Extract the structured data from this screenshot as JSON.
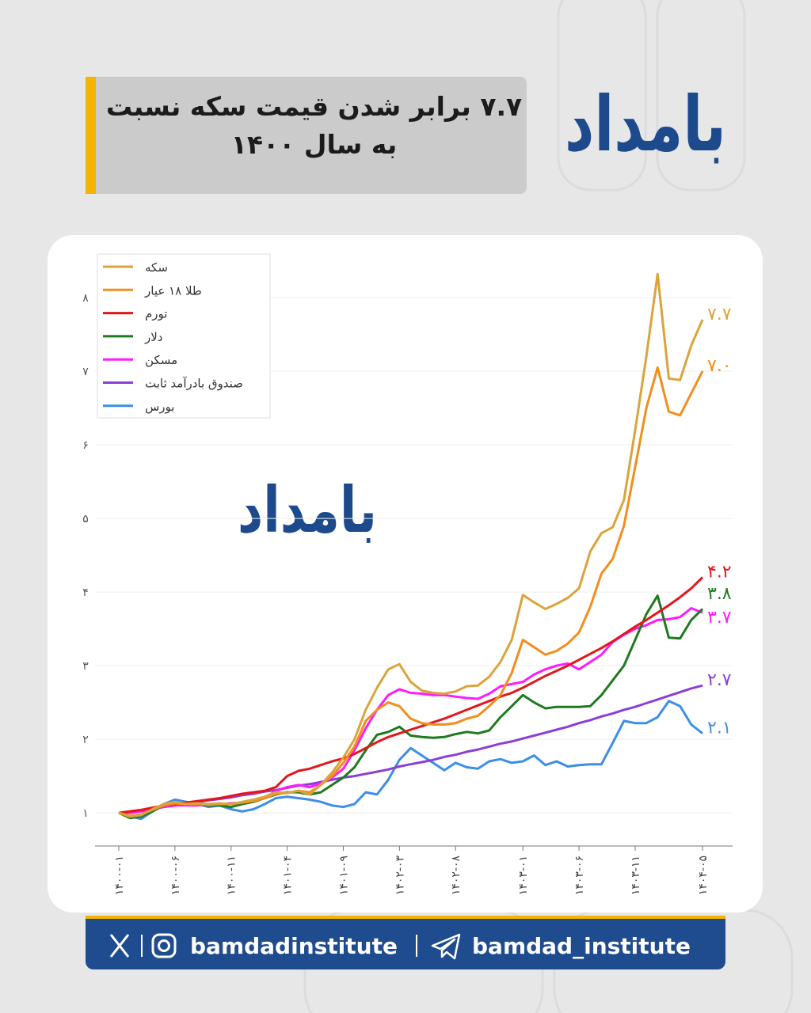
{
  "header": {
    "title_lines": [
      "۷.۷ برابر شدن قیمت سکه نسبت",
      "به سال ۱۴۰۰"
    ],
    "logo": "بامداد"
  },
  "footer": {
    "handle_instagram": "bamdadinstitute",
    "handle_telegram": "bamdad_institute"
  },
  "chart_data": {
    "type": "line",
    "legend": "upper left",
    "grid": true,
    "categories": [
      "۱۴۰۰-۰۱",
      null,
      null,
      null,
      null,
      "۱۴۰۰-۰۶",
      null,
      null,
      null,
      null,
      "۱۴۰۰-۱۱",
      null,
      null,
      null,
      null,
      "۱۴۰۱-۰۴",
      null,
      null,
      null,
      null,
      "۱۴۰۱-۰۹",
      null,
      null,
      null,
      null,
      "۱۴۰۲-۰۳",
      null,
      null,
      null,
      null,
      "۱۴۰۲-۰۸",
      null,
      null,
      null,
      null,
      null,
      "۱۴۰۳-۰۱",
      null,
      null,
      null,
      null,
      "۱۴۰۳-۰۶",
      null,
      null,
      null,
      null,
      "۱۴۰۳-۱۱",
      null,
      null,
      null,
      null,
      null,
      "۱۴۰۴-۰۵"
    ],
    "ylim": [
      0.55,
      8.5
    ],
    "yticks": [
      {
        "value": 1,
        "label": "۱"
      },
      {
        "value": 2,
        "label": "۲"
      },
      {
        "value": 3,
        "label": "۳"
      },
      {
        "value": 4,
        "label": "۴"
      },
      {
        "value": 5,
        "label": "۵"
      },
      {
        "value": 6,
        "label": "۶"
      },
      {
        "value": 7,
        "label": "۷"
      },
      {
        "value": 8,
        "label": "۸"
      }
    ],
    "series": [
      {
        "name": "سکه",
        "color": "#dba43a",
        "values": [
          1.0,
          0.95,
          0.97,
          1.05,
          1.12,
          1.15,
          1.12,
          1.13,
          1.12,
          1.13,
          1.12,
          1.15,
          1.18,
          1.22,
          1.28,
          1.27,
          1.3,
          1.25,
          1.38,
          1.55,
          1.75,
          2.0,
          2.4,
          2.7,
          2.95,
          3.02,
          2.78,
          2.66,
          2.63,
          2.62,
          2.65,
          2.72,
          2.73,
          2.85,
          3.05,
          3.35,
          3.96,
          3.86,
          3.77,
          3.84,
          3.92,
          4.05,
          4.55,
          4.8,
          4.88,
          5.25,
          6.2,
          7.2,
          8.32,
          6.9,
          6.88,
          7.35,
          7.7
        ],
        "value_labels": [
          null,
          null,
          null,
          null,
          null,
          null,
          null,
          null,
          null,
          null,
          null,
          null,
          null,
          null,
          null,
          null,
          null,
          null,
          null,
          null,
          null,
          null,
          null,
          null,
          null,
          null,
          null,
          null,
          null,
          null,
          null,
          null,
          null,
          null,
          null,
          null,
          null,
          null,
          null,
          null,
          null,
          null,
          null,
          null,
          null,
          null,
          null,
          null,
          null,
          null,
          null,
          null,
          "۷.۷"
        ]
      },
      {
        "name": "طلا ۱۸ عیار",
        "color": "#f28e1c",
        "values": [
          1.0,
          0.96,
          0.98,
          1.04,
          1.1,
          1.13,
          1.12,
          1.12,
          1.11,
          1.12,
          1.12,
          1.14,
          1.16,
          1.2,
          1.26,
          1.27,
          1.3,
          1.28,
          1.38,
          1.5,
          1.68,
          1.9,
          2.25,
          2.4,
          2.5,
          2.45,
          2.28,
          2.22,
          2.2,
          2.2,
          2.22,
          2.28,
          2.32,
          2.45,
          2.6,
          2.9,
          3.35,
          3.25,
          3.15,
          3.2,
          3.3,
          3.45,
          3.8,
          4.25,
          4.45,
          4.9,
          5.7,
          6.5,
          7.05,
          6.45,
          6.4,
          6.7,
          7.0
        ],
        "value_labels": [
          null,
          null,
          null,
          null,
          null,
          null,
          null,
          null,
          null,
          null,
          null,
          null,
          null,
          null,
          null,
          null,
          null,
          null,
          null,
          null,
          null,
          null,
          null,
          null,
          null,
          null,
          null,
          null,
          null,
          null,
          null,
          null,
          null,
          null,
          null,
          null,
          null,
          null,
          null,
          null,
          null,
          null,
          null,
          null,
          null,
          null,
          null,
          null,
          null,
          null,
          null,
          null,
          "۷.۰"
        ]
      },
      {
        "name": "تورم",
        "color": "#e5161b",
        "values": [
          1.0,
          1.02,
          1.04,
          1.07,
          1.1,
          1.12,
          1.14,
          1.16,
          1.18,
          1.2,
          1.23,
          1.26,
          1.28,
          1.3,
          1.35,
          1.5,
          1.57,
          1.6,
          1.65,
          1.7,
          1.74,
          1.8,
          1.88,
          1.96,
          2.03,
          2.08,
          2.13,
          2.18,
          2.23,
          2.28,
          2.34,
          2.4,
          2.46,
          2.52,
          2.58,
          2.63,
          2.7,
          2.78,
          2.86,
          2.93,
          3.0,
          3.08,
          3.16,
          3.24,
          3.33,
          3.43,
          3.53,
          3.62,
          3.72,
          3.82,
          3.93,
          4.05,
          4.2
        ],
        "value_labels": [
          null,
          null,
          null,
          null,
          null,
          null,
          null,
          null,
          null,
          null,
          null,
          null,
          null,
          null,
          null,
          null,
          null,
          null,
          null,
          null,
          null,
          null,
          null,
          null,
          null,
          null,
          null,
          null,
          null,
          null,
          null,
          null,
          null,
          null,
          null,
          null,
          null,
          null,
          null,
          null,
          null,
          null,
          null,
          null,
          null,
          null,
          null,
          null,
          null,
          null,
          null,
          null,
          "۴.۲"
        ]
      },
      {
        "name": "دلار",
        "color": "#1f7a1f",
        "values": [
          1.0,
          0.93,
          0.95,
          1.02,
          1.1,
          1.14,
          1.12,
          1.12,
          1.1,
          1.1,
          1.08,
          1.12,
          1.15,
          1.2,
          1.25,
          1.28,
          1.28,
          1.25,
          1.28,
          1.38,
          1.48,
          1.62,
          1.85,
          2.06,
          2.1,
          2.17,
          2.05,
          2.03,
          2.02,
          2.03,
          2.07,
          2.1,
          2.08,
          2.12,
          2.3,
          2.45,
          2.6,
          2.5,
          2.42,
          2.44,
          2.44,
          2.44,
          2.45,
          2.6,
          2.8,
          3.0,
          3.35,
          3.7,
          3.95,
          3.38,
          3.37,
          3.62,
          3.77
        ],
        "value_labels": [
          null,
          null,
          null,
          null,
          null,
          null,
          null,
          null,
          null,
          null,
          null,
          null,
          null,
          null,
          null,
          null,
          null,
          null,
          null,
          null,
          null,
          null,
          null,
          null,
          null,
          null,
          null,
          null,
          null,
          null,
          null,
          null,
          null,
          null,
          null,
          null,
          null,
          null,
          null,
          null,
          null,
          null,
          null,
          null,
          null,
          null,
          null,
          null,
          null,
          null,
          null,
          null,
          "۳.۸"
        ]
      },
      {
        "name": "مسکن",
        "color": "#ff1aff",
        "values": [
          1.0,
          1.0,
          1.02,
          1.05,
          1.08,
          1.1,
          1.1,
          1.1,
          1.11,
          1.12,
          1.13,
          1.14,
          1.16,
          1.2,
          1.3,
          1.35,
          1.38,
          1.35,
          1.4,
          1.48,
          1.6,
          1.85,
          2.15,
          2.4,
          2.6,
          2.68,
          2.63,
          2.62,
          2.6,
          2.6,
          2.58,
          2.56,
          2.55,
          2.62,
          2.72,
          2.75,
          2.78,
          2.88,
          2.95,
          3.0,
          3.03,
          2.95,
          3.05,
          3.15,
          3.32,
          3.42,
          3.5,
          3.55,
          3.62,
          3.63,
          3.66,
          3.78,
          3.72
        ],
        "value_labels": [
          null,
          null,
          null,
          null,
          null,
          null,
          null,
          null,
          null,
          null,
          null,
          null,
          null,
          null,
          null,
          null,
          null,
          null,
          null,
          null,
          null,
          null,
          null,
          null,
          null,
          null,
          null,
          null,
          null,
          null,
          null,
          null,
          null,
          null,
          null,
          null,
          null,
          null,
          null,
          null,
          null,
          null,
          null,
          null,
          null,
          null,
          null,
          null,
          null,
          null,
          null,
          null,
          "۳.۷"
        ]
      },
      {
        "name": "صندوق بادرآمد ثابت",
        "color": "#8b3fd6",
        "values": [
          1.0,
          1.02,
          1.04,
          1.06,
          1.08,
          1.1,
          1.12,
          1.15,
          1.17,
          1.19,
          1.21,
          1.24,
          1.26,
          1.29,
          1.31,
          1.34,
          1.37,
          1.39,
          1.42,
          1.45,
          1.48,
          1.5,
          1.53,
          1.56,
          1.59,
          1.63,
          1.66,
          1.69,
          1.72,
          1.76,
          1.79,
          1.83,
          1.86,
          1.9,
          1.94,
          1.97,
          2.01,
          2.05,
          2.09,
          2.13,
          2.17,
          2.22,
          2.26,
          2.31,
          2.35,
          2.4,
          2.44,
          2.49,
          2.54,
          2.59,
          2.64,
          2.69,
          2.73
        ],
        "value_labels": [
          null,
          null,
          null,
          null,
          null,
          null,
          null,
          null,
          null,
          null,
          null,
          null,
          null,
          null,
          null,
          null,
          null,
          null,
          null,
          null,
          null,
          null,
          null,
          null,
          null,
          null,
          null,
          null,
          null,
          null,
          null,
          null,
          null,
          null,
          null,
          null,
          null,
          null,
          null,
          null,
          null,
          null,
          null,
          null,
          null,
          null,
          null,
          null,
          null,
          null,
          null,
          null,
          "۲.۷"
        ]
      },
      {
        "name": "بورس",
        "color": "#3d8ee6",
        "values": [
          1.0,
          0.95,
          0.92,
          1.02,
          1.12,
          1.18,
          1.15,
          1.12,
          1.08,
          1.1,
          1.05,
          1.02,
          1.05,
          1.12,
          1.2,
          1.22,
          1.2,
          1.18,
          1.15,
          1.1,
          1.08,
          1.12,
          1.28,
          1.25,
          1.45,
          1.72,
          1.88,
          1.78,
          1.68,
          1.58,
          1.68,
          1.62,
          1.6,
          1.7,
          1.73,
          1.68,
          1.7,
          1.78,
          1.65,
          1.7,
          1.63,
          1.65,
          1.66,
          1.66,
          1.95,
          2.25,
          2.22,
          2.22,
          2.3,
          2.52,
          2.45,
          2.2,
          2.08
        ],
        "value_labels": [
          null,
          null,
          null,
          null,
          null,
          null,
          null,
          null,
          null,
          null,
          null,
          null,
          null,
          null,
          null,
          null,
          null,
          null,
          null,
          null,
          null,
          null,
          null,
          null,
          null,
          null,
          null,
          null,
          null,
          null,
          null,
          null,
          null,
          null,
          null,
          null,
          null,
          null,
          null,
          null,
          null,
          null,
          null,
          null,
          null,
          null,
          null,
          null,
          null,
          null,
          null,
          null,
          "۲.۱"
        ]
      }
    ]
  }
}
